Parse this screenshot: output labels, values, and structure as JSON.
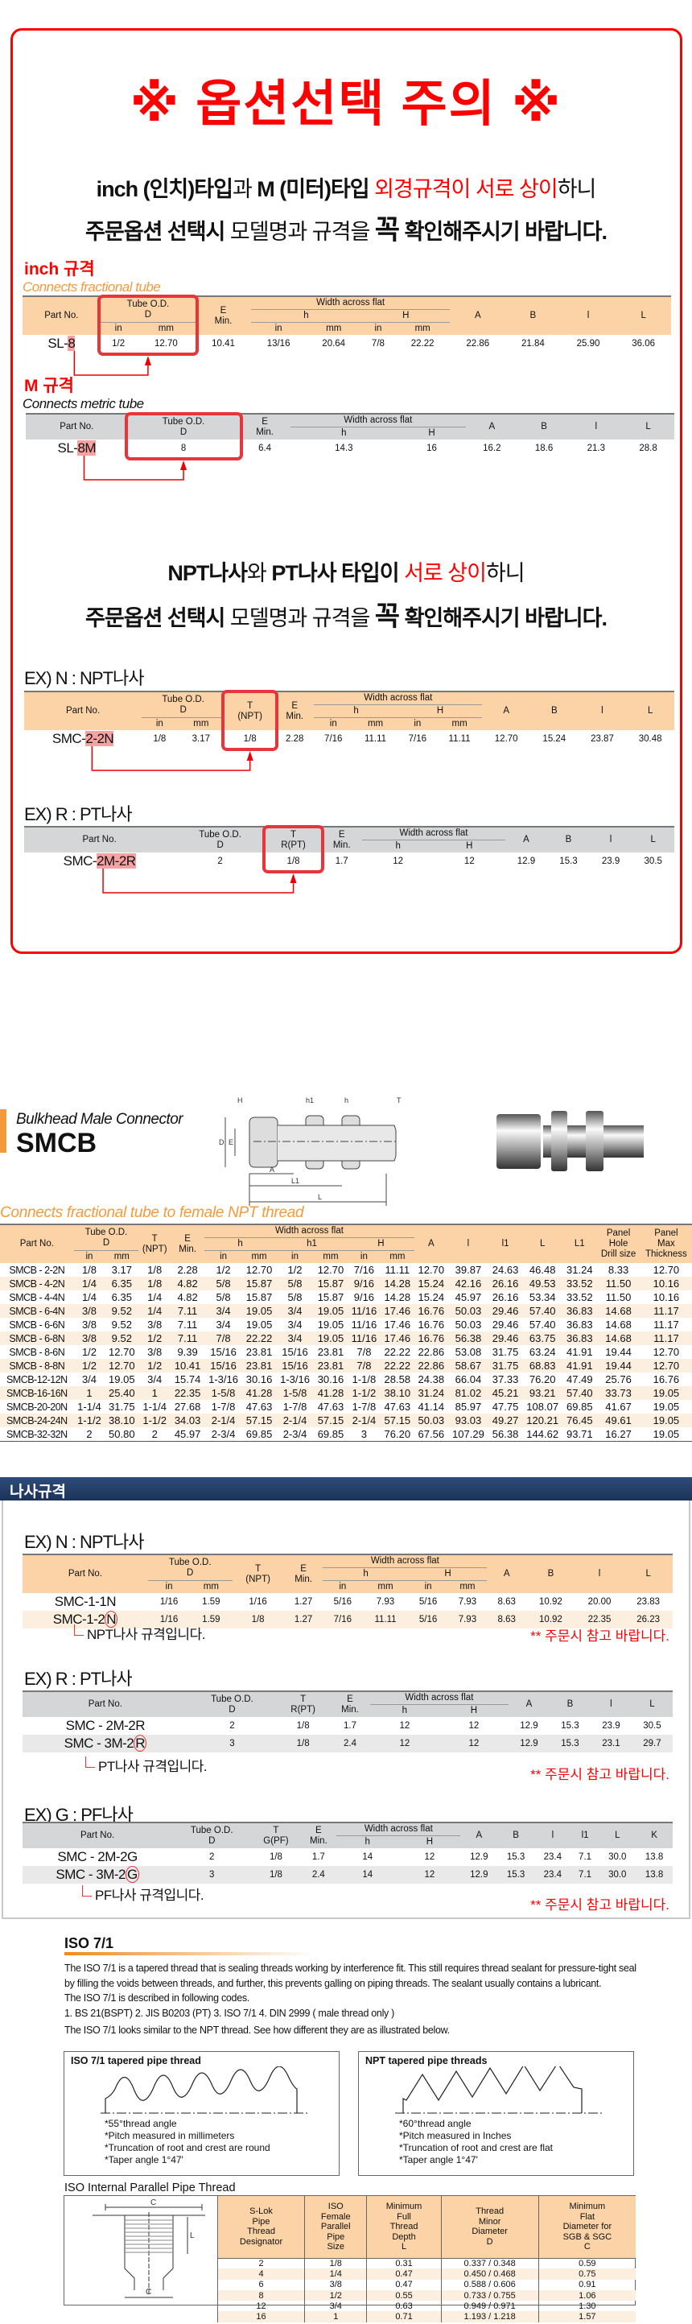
{
  "notice": {
    "title": "※ 옵션선택 주의 ※",
    "line1": [
      "inch (인치)타입",
      "과 ",
      "M (미터)타입 ",
      "외경규격이 서로 상이",
      "하니"
    ],
    "line2": [
      "주문옵션 선택시",
      " 모델명과 규격을 ",
      "꼭",
      " 확인해주시기 바랍니다."
    ],
    "line3": [
      "NPT나사",
      "와 ",
      "PT나사 타입이 ",
      "서로 상이",
      "하니"
    ],
    "line4": [
      "주문옵션 선택시",
      " 모델명과 규격을 ",
      "꼭",
      " 확인해주시기 바랍니다."
    ],
    "accent_color": "#ff0000"
  },
  "inch_section": {
    "label": "inch 규격",
    "subtitle": "Connects fractional tube"
  },
  "metric_section": {
    "label": "M 규격",
    "subtitle": "Connects metric tube"
  },
  "ex_n_top": {
    "label": "EX) N : NPT나사"
  },
  "ex_r_top": {
    "label": "EX) R : PT나사"
  },
  "t1": {
    "headers": [
      [
        "Part No.",
        "Tube  O.D.\nD",
        "E\nMin.",
        "Width across flat",
        "A",
        "B",
        "l",
        "L"
      ],
      [
        "h",
        "H"
      ],
      [
        "in",
        "mm",
        "in",
        "mm",
        "in",
        "mm"
      ]
    ],
    "rows": [
      [
        [
          "SL-",
          "8"
        ],
        "1/2",
        "12.70",
        "10.41",
        "13/16",
        "20.64",
        "7/8",
        "22.22",
        "22.86",
        "21.84",
        "25.90",
        "36.06"
      ]
    ]
  },
  "t2": {
    "headers": [
      [
        "Part No.",
        "Tube  O.D.\nD",
        "E\nMin.",
        "Width across flat",
        "A",
        "B",
        "l",
        "L"
      ],
      [
        "h",
        "H"
      ]
    ],
    "rows": [
      [
        [
          "SL-",
          "8M"
        ],
        "8",
        "6.4",
        "14.3",
        "16",
        "16.2",
        "18.6",
        "21.3",
        "28.8"
      ]
    ]
  },
  "t3": {
    "headers": [
      [
        "Part  No.",
        "Tube  O.D.\nD",
        "T\n(NPT)",
        "E\nMin.",
        "Width across flat",
        "A",
        "B",
        "l",
        "L"
      ],
      [
        "h",
        "H"
      ],
      [
        "in",
        "mm",
        "in",
        "mm",
        "in",
        "mm"
      ]
    ],
    "rows": [
      [
        [
          "SMC-",
          "2-2N"
        ],
        "1/8",
        "3.17",
        "1/8",
        "2.28",
        "7/16",
        "11.11",
        "7/16",
        "11.11",
        "12.70",
        "15.24",
        "23.87",
        "30.48"
      ]
    ]
  },
  "t4": {
    "headers": [
      [
        "Part  No.",
        "Tube  O.D.\nD",
        "T\nR(PT)",
        "E\nMin.",
        "Width across flat",
        "A",
        "B",
        "l",
        "L"
      ],
      [
        "h",
        "H"
      ]
    ],
    "rows": [
      [
        [
          "SMC-",
          "2M-2R"
        ],
        "2",
        "1/8",
        "1.7",
        "12",
        "12",
        "12.9",
        "15.3",
        "23.9",
        "30.5"
      ]
    ]
  },
  "smcb": {
    "subtitle_top": "Bulkhead Male Connector",
    "title": "SMCB",
    "subtitle": "Connects fractional tube to female NPT thread",
    "diagram_labels": [
      "H",
      "h1",
      "h",
      "T",
      "D",
      "E",
      "A",
      "L1",
      "L"
    ],
    "brand_color": "#f49a3b"
  },
  "t5": {
    "headers": [
      [
        "Part  No.",
        "Tube  O.D.\nD",
        "T\n(NPT)",
        "E\nMin.",
        "Width across flat",
        "A",
        "l",
        "l1",
        "L",
        "L1",
        "Panel\nHole\nDrill size",
        "Panel\nMax\nThickness"
      ],
      [
        "h",
        "h1",
        "H"
      ],
      [
        "in",
        "mm",
        "in",
        "mm",
        "in",
        "mm",
        "in",
        "mm"
      ]
    ],
    "rows": [
      [
        "SMCB - 2-2N",
        "1/8",
        "3.17",
        "1/8",
        "2.28",
        "1/2",
        "12.70",
        "1/2",
        "12.70",
        "7/16",
        "11.11",
        "12.70",
        "39.87",
        "24.63",
        "46.48",
        "31.24",
        "8.33",
        "12.70"
      ],
      [
        "SMCB - 4-2N",
        "1/4",
        "6.35",
        "1/8",
        "4.82",
        "5/8",
        "15.87",
        "5/8",
        "15.87",
        "9/16",
        "14.28",
        "15.24",
        "42.16",
        "26.16",
        "49.53",
        "33.52",
        "11.50",
        "10.16"
      ],
      [
        "SMCB - 4-4N",
        "1/4",
        "6.35",
        "1/4",
        "4.82",
        "5/8",
        "15.87",
        "5/8",
        "15.87",
        "9/16",
        "14.28",
        "15.24",
        "45.97",
        "26.16",
        "53.34",
        "33.52",
        "11.50",
        "10.16"
      ],
      [
        "SMCB - 6-4N",
        "3/8",
        "9.52",
        "1/4",
        "7.11",
        "3/4",
        "19.05",
        "3/4",
        "19.05",
        "11/16",
        "17.46",
        "16.76",
        "50.03",
        "29.46",
        "57.40",
        "36.83",
        "14.68",
        "11.17"
      ],
      [
        "SMCB - 6-6N",
        "3/8",
        "9.52",
        "3/8",
        "7.11",
        "3/4",
        "19.05",
        "3/4",
        "19.05",
        "11/16",
        "17.46",
        "16.76",
        "50.03",
        "29.46",
        "57.40",
        "36.83",
        "14.68",
        "11.17"
      ],
      [
        "SMCB - 6-8N",
        "3/8",
        "9.52",
        "1/2",
        "7.11",
        "7/8",
        "22.22",
        "3/4",
        "19.05",
        "11/16",
        "17.46",
        "16.76",
        "56.38",
        "29.46",
        "63.75",
        "36.83",
        "14.68",
        "11.17"
      ],
      [
        "SMCB - 8-6N",
        "1/2",
        "12.70",
        "3/8",
        "9.39",
        "15/16",
        "23.81",
        "15/16",
        "23.81",
        "7/8",
        "22.22",
        "22.86",
        "53.08",
        "31.75",
        "63.24",
        "41.91",
        "19.44",
        "12.70"
      ],
      [
        "SMCB - 8-8N",
        "1/2",
        "12.70",
        "1/2",
        "10.41",
        "15/16",
        "23.81",
        "15/16",
        "23.81",
        "7/8",
        "22.22",
        "22.86",
        "58.67",
        "31.75",
        "68.83",
        "41.91",
        "19.44",
        "12.70"
      ],
      [
        "SMCB-12-12N",
        "3/4",
        "19.05",
        "3/4",
        "15.74",
        "1-3/16",
        "30.16",
        "1-3/16",
        "30.16",
        "1-1/8",
        "28.58",
        "24.38",
        "66.04",
        "37.33",
        "76.20",
        "47.49",
        "25.76",
        "16.76"
      ],
      [
        "SMCB-16-16N",
        "1",
        "25.40",
        "1",
        "22.35",
        "1-5/8",
        "41.28",
        "1-5/8",
        "41.28",
        "1-1/2",
        "38.10",
        "31.24",
        "81.02",
        "45.21",
        "93.21",
        "57.40",
        "33.73",
        "19.05"
      ],
      [
        "SMCB-20-20N",
        "1-1/4",
        "31.75",
        "1-1/4",
        "27.68",
        "1-7/8",
        "47.63",
        "1-7/8",
        "47.63",
        "1-7/8",
        "47.63",
        "41.14",
        "85.97",
        "47.75",
        "108.07",
        "69.85",
        "41.67",
        "19.05"
      ],
      [
        "SMCB-24-24N",
        "1-1/2",
        "38.10",
        "1-1/2",
        "34.03",
        "2-1/4",
        "57.15",
        "2-1/4",
        "57.15",
        "2-1/4",
        "57.15",
        "50.03",
        "93.03",
        "49.27",
        "120.21",
        "76.45",
        "49.61",
        "19.05"
      ],
      [
        "SMCB-32-32N",
        "2",
        "50.80",
        "2",
        "45.97",
        "2-3/4",
        "69.85",
        "2-3/4",
        "69.85",
        "3",
        "76.20",
        "67.56",
        "107.29",
        "56.38",
        "144.62",
        "93.71",
        "16.27",
        "19.05"
      ]
    ]
  },
  "thread_spec": {
    "bar_title": "나사규격",
    "order_note": "** 주문시 참고 바랍니다."
  },
  "ex_n": {
    "label": "EX) N : NPT나사",
    "note": "NPT나사 규격입니다."
  },
  "ex_r": {
    "label": "EX) R : PT나사",
    "note": "PT나사 규격입니다."
  },
  "ex_g": {
    "label": "EX) G : PF나사",
    "note": "PF나사 규격입니다."
  },
  "t6": {
    "headers": [
      [
        "Part  No.",
        "Tube  O.D.\nD",
        "T\n(NPT)",
        "E\nMin.",
        "Width across flat",
        "A",
        "B",
        "l",
        "L"
      ],
      [
        "h",
        "H"
      ],
      [
        "in",
        "mm",
        "in",
        "mm",
        "in",
        "mm"
      ]
    ],
    "rows": [
      [
        "SMC-1-1N",
        "1/16",
        "1.59",
        "1/16",
        "1.27",
        "5/16",
        "7.93",
        "5/16",
        "7.93",
        "8.63",
        "10.92",
        "20.00",
        "23.83"
      ],
      [
        [
          "SMC-1-2",
          "N"
        ],
        "1/16",
        "1.59",
        "1/8",
        "1.27",
        "7/16",
        "11.11",
        "5/16",
        "7.93",
        "8.63",
        "10.92",
        "22.35",
        "26.23"
      ]
    ]
  },
  "t7": {
    "headers": [
      [
        "Part No.",
        "Tube O.D.\nD",
        "T\nR(PT)",
        "E\nMin.",
        "Width across flat",
        "A",
        "B",
        "l",
        "L"
      ],
      [
        "h",
        "H"
      ]
    ],
    "rows": [
      [
        "SMC - 2M-2R",
        "2",
        "1/8",
        "1.7",
        "12",
        "12",
        "12.9",
        "15.3",
        "23.9",
        "30.5"
      ],
      [
        [
          "SMC - 3M-2",
          "R"
        ],
        "3",
        "1/8",
        "2.4",
        "12",
        "12",
        "12.9",
        "15.3",
        "23.1",
        "29.7"
      ]
    ]
  },
  "t8": {
    "headers": [
      [
        "Part  No.",
        "Tube  O.D.\nD",
        "T\nG(PF)",
        "E\nMin.",
        "Width across flat",
        "A",
        "B",
        "l",
        "l1",
        "L",
        "K"
      ],
      [
        "h",
        "H"
      ]
    ],
    "rows": [
      [
        "SMC - 2M-2G",
        "2",
        "1/8",
        "1.7",
        "14",
        "12",
        "12.9",
        "15.3",
        "23.4",
        "7.1",
        "30.0",
        "13.8"
      ],
      [
        [
          "SMC - 3M-2",
          "G"
        ],
        "3",
        "1/8",
        "2.4",
        "14",
        "12",
        "12.9",
        "15.3",
        "23.4",
        "7.1",
        "30.0",
        "13.8"
      ]
    ]
  },
  "iso": {
    "title": "ISO 7/1",
    "paragraph1": "The ISO 7/1 is a tapered thread that is sealing threads working by interference fit. This still requires thread sealant for pressure-tight seal by filling the voids between threads, and further, this prevents galling on piping threads. The sealant usually contains a lubricant.",
    "paragraph2": "The ISO 7/1 is described in following codes.",
    "paragraph3": "1. BS 21(BSPT)   2. JIS B0203 (PT)   3. ISO 7/1   4. DIN 2999 ( male thread only )",
    "paragraph4": "The ISO 7/1 looks similar to the NPT thread. See how different they are as illustrated below.",
    "box1": {
      "title": "ISO 7/1 tapered pipe thread",
      "items": [
        "*55°thread angle",
        "*Pitch measured in millimeters",
        "*Truncation of root and crest are round",
        "*Taper angle 1°47'"
      ]
    },
    "box2": {
      "title": "NPT tapered pipe threads",
      "items": [
        "*60°thread angle",
        "*Pitch measured in Inches",
        "*Truncation of root and crest are flat",
        "*Taper angle 1°47'"
      ]
    },
    "internal_title": "ISO Internal Parallel Pipe Thread",
    "diagram_labels": [
      "C",
      "L",
      "C"
    ]
  },
  "t9": {
    "headers": [
      [
        "S-Lok\nPipe\nThread\nDesignator",
        "ISO\nFemale\nParallel\nPipe\nSize",
        "Minimum\nFull\nThread\nDepth\nL",
        "Thread\nMinor\nDiameter\nD",
        "Minimum\nFlat\nDiameter for\nSGB & SGC\nC"
      ]
    ],
    "rows": [
      [
        "2",
        "1/8",
        "0.31",
        "0.337 / 0.348",
        "0.59"
      ],
      [
        "4",
        "1/4",
        "0.47",
        "0.450 / 0.468",
        "0.75"
      ],
      [
        "6",
        "3/8",
        "0.47",
        "0.588 / 0.606",
        "0.91"
      ],
      [
        "8",
        "1/2",
        "0.55",
        "0.733 / 0.755",
        "1.06"
      ],
      [
        "12",
        "3/4",
        "0.63",
        "0.949 / 0.971",
        "1.30"
      ],
      [
        "16",
        "1",
        "0.71",
        "1.193 / 1.218",
        "1.57"
      ]
    ]
  }
}
